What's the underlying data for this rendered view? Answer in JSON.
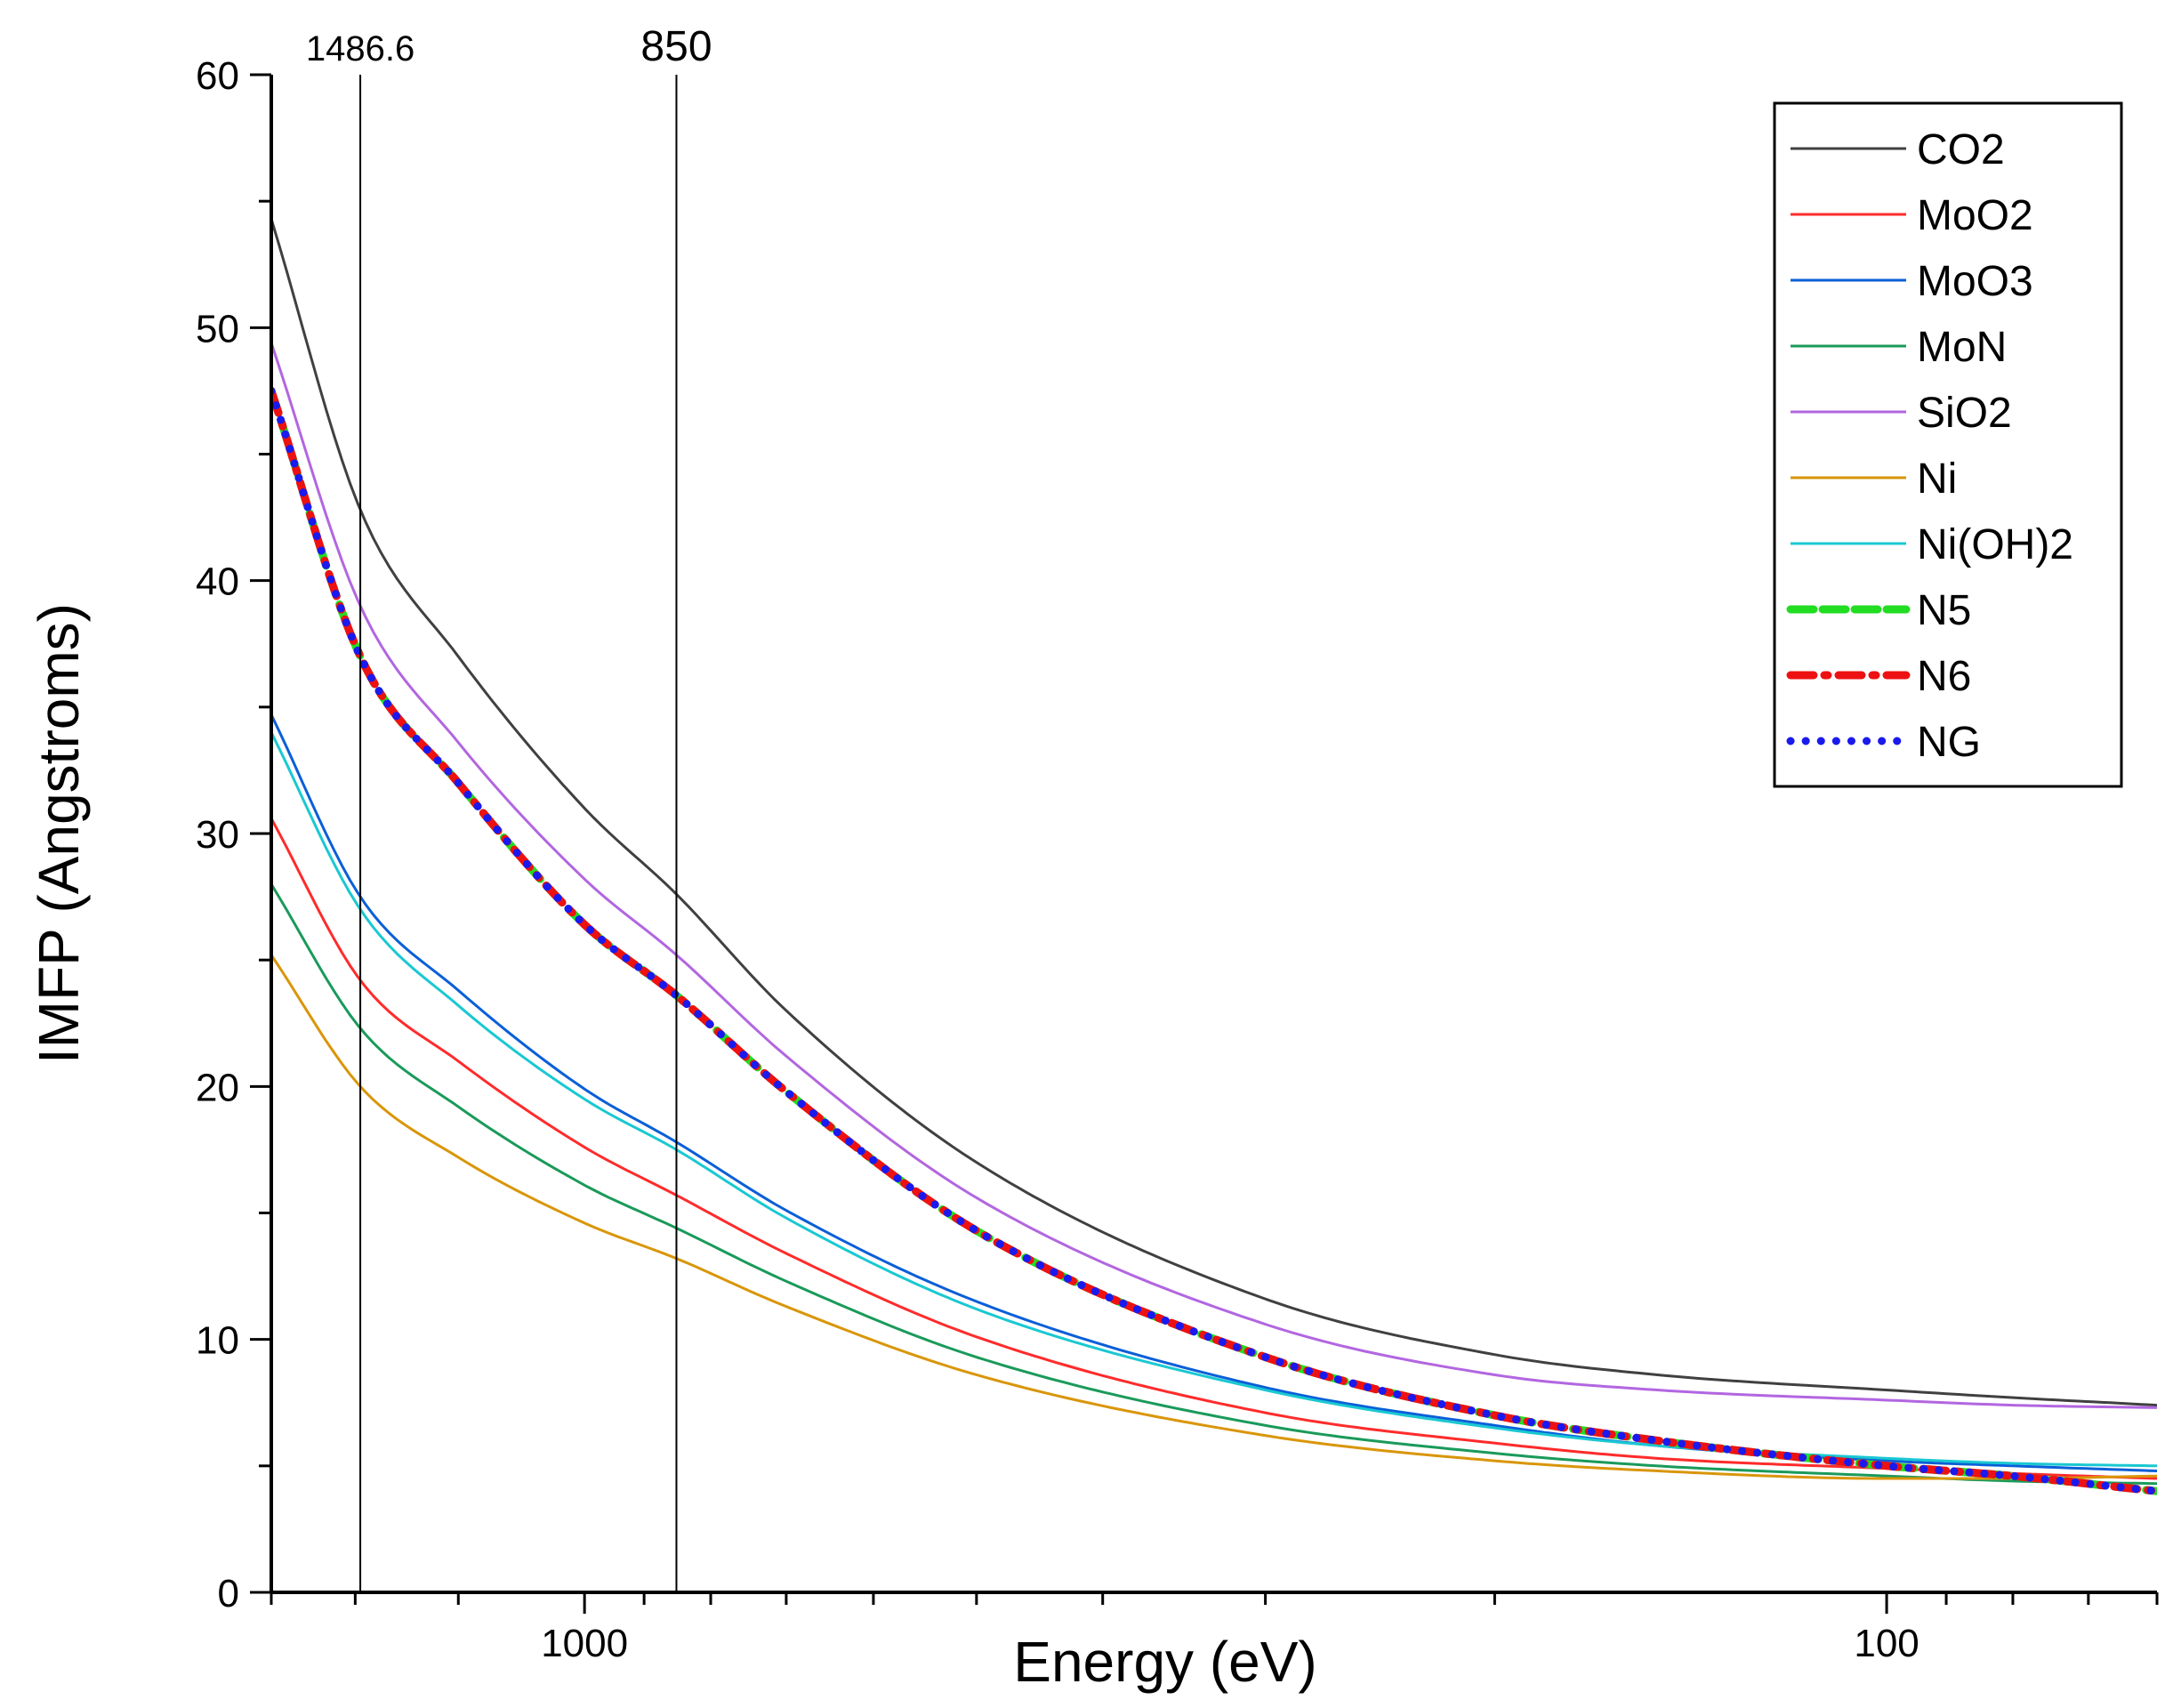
{
  "chart_data": {
    "type": "line",
    "title": "",
    "xlabel": "Energy (eV)",
    "ylabel": "IMFP (Angstroms)",
    "x_scale": "log",
    "x_reversed": true,
    "xlim": [
      1740,
      62
    ],
    "ylim": [
      0,
      60
    ],
    "x_tick_labels": [
      {
        "value": 1000,
        "label": "1000"
      },
      {
        "value": 100,
        "label": "100"
      }
    ],
    "x_minor_ticks": [
      1500,
      1250,
      900,
      800,
      700,
      600,
      500,
      400,
      300,
      200,
      90,
      80,
      70
    ],
    "y_ticks": [
      0,
      10,
      20,
      30,
      40,
      50,
      60
    ],
    "y_minor_ticks": [
      5,
      15,
      25,
      35,
      45,
      55
    ],
    "grid": false,
    "legend_position": "top-right",
    "reference_lines": [
      {
        "x": 1486.6,
        "label": "1486.6"
      },
      {
        "x": 850,
        "label": "850"
      }
    ],
    "x": [
      1740,
      1486.6,
      1250,
      1000,
      850,
      700,
      500,
      300,
      200,
      150,
      100,
      80,
      62
    ],
    "series": [
      {
        "name": "CO2",
        "color": "#404040",
        "style": "solid",
        "values": [
          54.3,
          42.8,
          37.0,
          31.0,
          27.6,
          23.0,
          17.0,
          11.6,
          9.4,
          8.6,
          8.0,
          7.7,
          7.4
        ]
      },
      {
        "name": "MoO2",
        "color": "#ff2b2b",
        "style": "solid",
        "values": [
          30.6,
          24.2,
          21.0,
          17.6,
          15.7,
          13.4,
          10.1,
          7.1,
          5.9,
          5.3,
          4.9,
          4.7,
          4.5
        ]
      },
      {
        "name": "MoO3",
        "color": "#0a5fd8",
        "style": "solid",
        "values": [
          34.7,
          27.5,
          23.8,
          19.9,
          17.8,
          15.1,
          11.5,
          8.1,
          6.6,
          5.8,
          5.2,
          5.0,
          4.8
        ]
      },
      {
        "name": "MoN",
        "color": "#1a9a5a",
        "style": "solid",
        "values": [
          28.0,
          22.3,
          19.2,
          16.1,
          14.4,
          12.3,
          9.3,
          6.6,
          5.5,
          5.0,
          4.6,
          4.4,
          4.3
        ]
      },
      {
        "name": "SiO2",
        "color": "#b266e0",
        "style": "solid",
        "values": [
          49.4,
          39.0,
          33.6,
          28.2,
          25.2,
          21.2,
          15.6,
          10.6,
          8.6,
          8.0,
          7.6,
          7.4,
          7.3
        ]
      },
      {
        "name": "Ni",
        "color": "#d9960a",
        "style": "solid",
        "values": [
          25.2,
          20.0,
          17.2,
          14.6,
          13.2,
          11.3,
          8.6,
          6.2,
          5.2,
          4.8,
          4.5,
          4.5,
          4.6
        ]
      },
      {
        "name": "Ni(OH)2",
        "color": "#19c8d2",
        "style": "solid",
        "values": [
          34.0,
          27.0,
          23.2,
          19.5,
          17.5,
          14.8,
          11.2,
          8.0,
          6.5,
          5.8,
          5.3,
          5.1,
          5.0
        ]
      },
      {
        "name": "N5",
        "color": "#22dd22",
        "style": "dash-thick",
        "values": [
          47.5,
          37.0,
          32.0,
          26.4,
          23.6,
          19.8,
          14.3,
          9.3,
          7.0,
          6.0,
          5.0,
          4.6,
          4.0
        ]
      },
      {
        "name": "N6",
        "color": "#ee1111",
        "style": "dashdot-thick",
        "values": [
          47.5,
          37.0,
          32.0,
          26.4,
          23.6,
          19.8,
          14.3,
          9.3,
          7.0,
          6.0,
          5.0,
          4.6,
          4.0
        ]
      },
      {
        "name": "NG",
        "color": "#1a1aee",
        "style": "dot-thick",
        "values": [
          47.5,
          37.0,
          32.0,
          26.4,
          23.6,
          19.8,
          14.3,
          9.3,
          7.0,
          6.0,
          5.0,
          4.6,
          4.0
        ]
      }
    ]
  }
}
